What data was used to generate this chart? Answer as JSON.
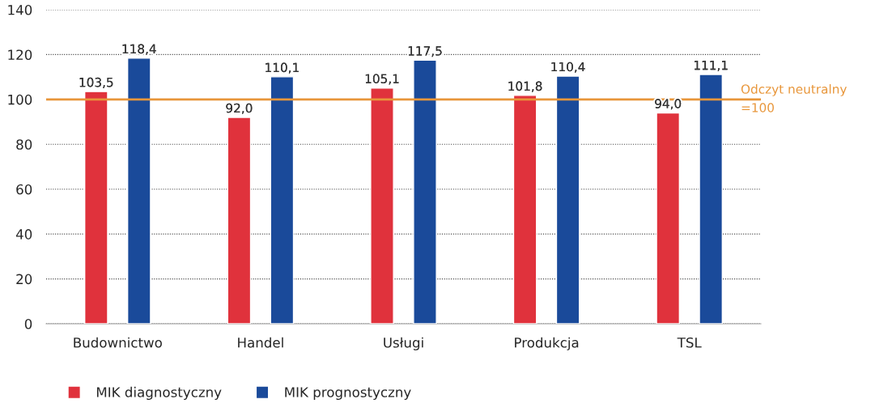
{
  "chart_data": {
    "type": "bar",
    "categories": [
      "Budownictwo",
      "Handel",
      "Usługi",
      "Produkcja",
      "TSL"
    ],
    "series": [
      {
        "name": "MIK diagnostyczny",
        "color": "#e0323c",
        "values": [
          103.5,
          92.0,
          105.1,
          101.8,
          94.0
        ],
        "value_labels": [
          "103,5",
          "92,0",
          "105,1",
          "101,8",
          "94,0"
        ]
      },
      {
        "name": "MIK prognostyczny",
        "color": "#1a4a9a",
        "values": [
          118.4,
          110.1,
          117.5,
          110.4,
          111.1
        ],
        "value_labels": [
          "118,4",
          "110,1",
          "117,5",
          "110,4",
          "111,1"
        ]
      }
    ],
    "ylim": [
      0,
      140
    ],
    "yticks": [
      0,
      20,
      40,
      60,
      80,
      100,
      120,
      140
    ],
    "grid": "y",
    "legend": "bottom left",
    "ref_lines": [
      {
        "axis": "y",
        "value": 100,
        "label": "Odczyt neutralny\n=100",
        "color": "#e8963a"
      }
    ]
  }
}
